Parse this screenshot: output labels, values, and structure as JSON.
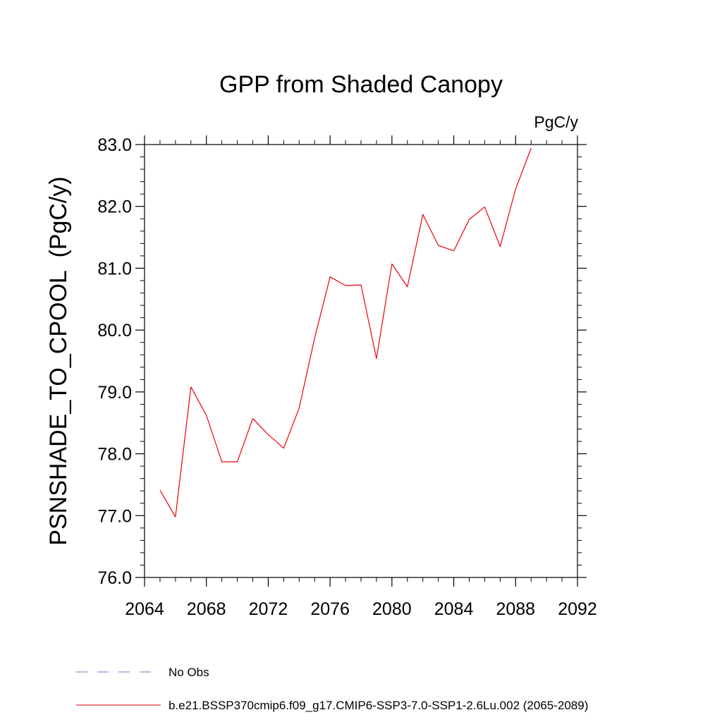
{
  "chart_data": {
    "type": "line",
    "title": "GPP from Shaded Canopy",
    "units": "PgC/y",
    "ylabel": "PSNSHADE_TO_CPOOL  (PgC/y)",
    "xlabel": "",
    "xlim": [
      2064,
      2092
    ],
    "ylim": [
      76.0,
      83.0
    ],
    "x_ticks": [
      2064,
      2068,
      2072,
      2076,
      2080,
      2084,
      2088,
      2092
    ],
    "x_tick_labels": [
      "2064",
      "2068",
      "2072",
      "2076",
      "2080",
      "2084",
      "2088",
      "2092"
    ],
    "y_ticks": [
      76,
      77,
      78,
      79,
      80,
      81,
      82,
      83
    ],
    "y_tick_labels": [
      "76.0",
      "77.0",
      "78.0",
      "79.0",
      "80.0",
      "81.0",
      "82.0",
      "83.0"
    ],
    "grid": false,
    "legend_position": "bottom",
    "series": [
      {
        "name": "No Obs",
        "color": "#7b6fd0",
        "dash": "dashed",
        "x": [],
        "values": []
      },
      {
        "name": "b.e21.BSSP370cmip6.f09_g17.CMIP6-SSP3-7.0-SSP1-2.6Lu.002 (2065-2089)",
        "color": "#e8000b",
        "dash": "solid",
        "x": [
          2065,
          2066,
          2067,
          2068,
          2069,
          2070,
          2071,
          2072,
          2073,
          2074,
          2075,
          2076,
          2077,
          2078,
          2079,
          2080,
          2081,
          2082,
          2083,
          2084,
          2085,
          2086,
          2087,
          2088,
          2089
        ],
        "values": [
          77.41,
          76.98,
          79.08,
          78.62,
          77.87,
          77.87,
          78.57,
          78.31,
          78.09,
          78.74,
          79.87,
          80.86,
          80.72,
          80.73,
          79.54,
          81.07,
          80.7,
          81.87,
          81.37,
          81.28,
          81.79,
          81.99,
          81.35,
          82.28,
          82.94
        ]
      }
    ]
  }
}
